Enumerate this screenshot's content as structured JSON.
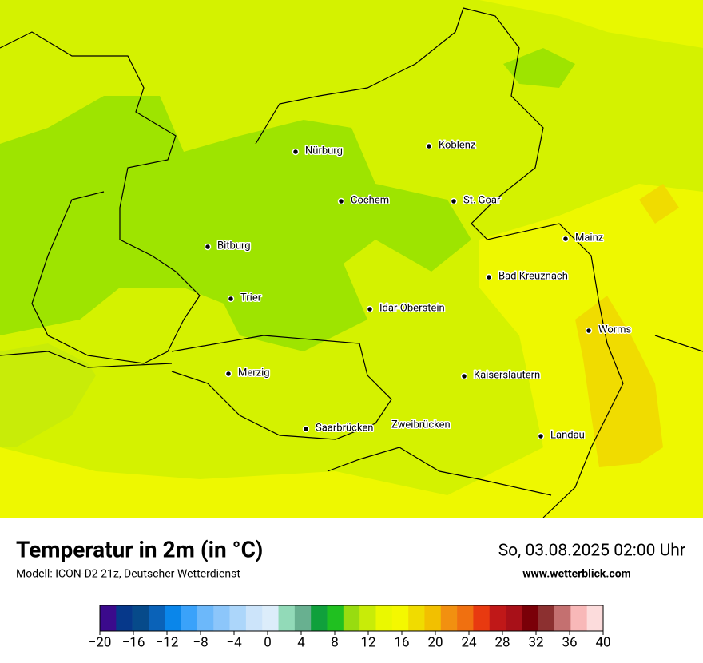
{
  "map": {
    "cities": [
      "Nürburg",
      "Koblenz",
      "Cochem",
      "St. Goar",
      "Mainz",
      "Bitburg",
      "Bad Kreuznach",
      "Trier",
      "Idar-Oberstein",
      "Worms",
      "Merzig",
      "Kaiserslautern",
      "Saarbrücken",
      "Zweibrücken",
      "Landau"
    ]
  },
  "footer": {
    "title": "Temperatur in 2m (in °C)",
    "model": "Modell: ICON-D2 21z, Deutscher Wetterdienst",
    "datetime": "So, 03.08.2025 02:00 Uhr",
    "website": "www.wetterblick.com"
  },
  "colorbar": {
    "lim": [
      -20,
      40
    ],
    "colors": [
      "#3b0a8c",
      "#06388a",
      "#064a8a",
      "#0a62b8",
      "#0a86ea",
      "#3aa2fa",
      "#6cb8fa",
      "#8cc6fa",
      "#acd6fa",
      "#cce4fa",
      "#dcedfa",
      "#92dab8",
      "#68b090",
      "#10a03c",
      "#20c020",
      "#98dc10",
      "#c8ec08",
      "#eaf800",
      "#f4f800",
      "#f0dc00",
      "#f2c000",
      "#f29010",
      "#f07010",
      "#e83a10",
      "#c01818",
      "#a81018",
      "#7a0008",
      "#8c3030",
      "#c47070",
      "#f8b8b8",
      "#fcdcdc"
    ],
    "ticks": [
      {
        "value": -20,
        "label": "−20"
      },
      {
        "value": -16,
        "label": "−16"
      },
      {
        "value": -12,
        "label": "−12"
      },
      {
        "value": -8,
        "label": "−8"
      },
      {
        "value": -4,
        "label": "−4"
      },
      0,
      4,
      8,
      12,
      16,
      20,
      24,
      28,
      32,
      36,
      40
    ]
  }
}
